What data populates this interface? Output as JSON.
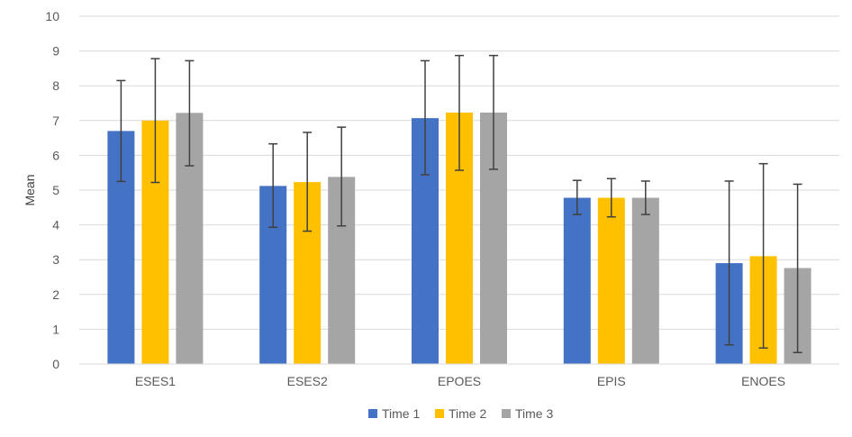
{
  "chart_data": {
    "type": "bar",
    "title": "",
    "xlabel": "",
    "ylabel": "Mean",
    "ylim": [
      0,
      10
    ],
    "yticks": [
      "0",
      "1",
      "2",
      "3",
      "4",
      "5",
      "6",
      "7",
      "8",
      "9",
      "10"
    ],
    "grid": true,
    "legend_position": "bottom",
    "categories": [
      "ESES1",
      "ESES2",
      "EPOES",
      "EPIS",
      "ENOES"
    ],
    "series": [
      {
        "name": "Time 1",
        "color": "#4472C4",
        "values": [
          6.7,
          5.12,
          7.07,
          4.78,
          2.9
        ],
        "error_low": [
          5.25,
          3.93,
          5.44,
          4.3,
          0.55
        ],
        "error_high": [
          8.15,
          6.33,
          8.72,
          5.28,
          5.26
        ]
      },
      {
        "name": "Time 2",
        "color": "#FFC000",
        "values": [
          7.0,
          5.23,
          7.23,
          4.78,
          3.1
        ],
        "error_low": [
          5.22,
          3.82,
          5.57,
          4.23,
          0.46
        ],
        "error_high": [
          8.78,
          6.66,
          8.87,
          5.33,
          5.76
        ]
      },
      {
        "name": "Time 3",
        "color": "#A5A5A5",
        "values": [
          7.22,
          5.38,
          7.23,
          4.78,
          2.76
        ],
        "error_low": [
          5.7,
          3.97,
          5.6,
          4.3,
          0.33
        ],
        "error_high": [
          8.72,
          6.81,
          8.87,
          5.26,
          5.17
        ]
      }
    ]
  }
}
